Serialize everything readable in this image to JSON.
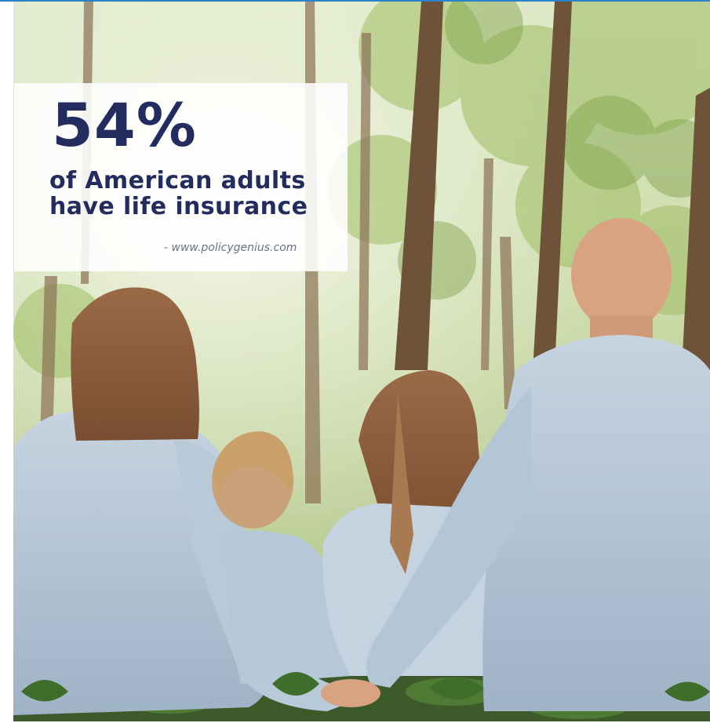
{
  "stat": {
    "value": "54%",
    "line1": "of American adults",
    "line2": "have life insurance",
    "source": "- www.policygenius.com"
  },
  "colors": {
    "headline": "#232c5e",
    "source": "#6a7183",
    "accent_line": "#2a83c9"
  }
}
